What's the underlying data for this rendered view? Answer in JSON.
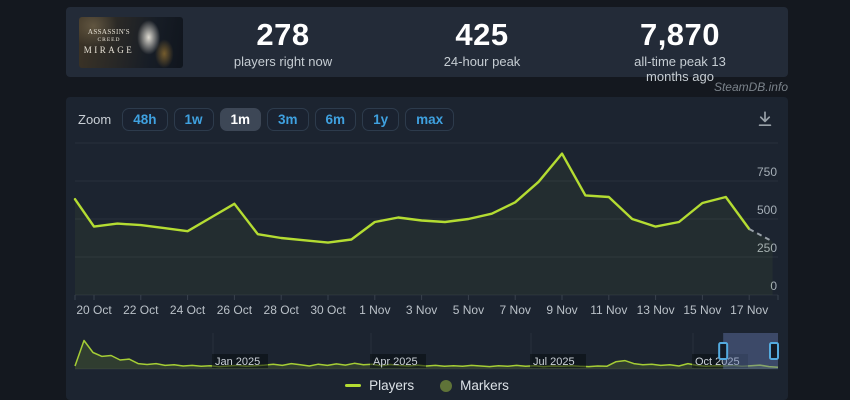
{
  "stats_bar": {
    "game_title": "Assassin's Creed Mirage",
    "capsule_lines": [
      "ASSASSIN'S",
      "CREED",
      "MIRAGE"
    ],
    "stats": [
      {
        "value": "278",
        "label": "players right now"
      },
      {
        "value": "425",
        "label": "24-hour peak"
      },
      {
        "value": "7,870",
        "label": "all-time peak 13 months ago"
      }
    ]
  },
  "credit": "SteamDB.info",
  "toolbar": {
    "zoom_label": "Zoom",
    "options": [
      {
        "label": "48h",
        "selected": false
      },
      {
        "label": "1w",
        "selected": false
      },
      {
        "label": "1m",
        "selected": true
      },
      {
        "label": "3m",
        "selected": false
      },
      {
        "label": "6m",
        "selected": false
      },
      {
        "label": "1y",
        "selected": false
      },
      {
        "label": "max",
        "selected": false
      }
    ],
    "download_icon": "download-icon"
  },
  "chart_data": [
    {
      "type": "line",
      "name": "players-last-month",
      "series_name": "Players",
      "line_color": "#b4dc32",
      "x": [
        "19 Oct",
        "20 Oct",
        "21 Oct",
        "22 Oct",
        "23 Oct",
        "24 Oct",
        "25 Oct",
        "26 Oct",
        "27 Oct",
        "28 Oct",
        "29 Oct",
        "30 Oct",
        "31 Oct",
        "1 Nov",
        "2 Nov",
        "3 Nov",
        "4 Nov",
        "5 Nov",
        "6 Nov",
        "7 Nov",
        "8 Nov",
        "9 Nov",
        "10 Nov",
        "11 Nov",
        "12 Nov",
        "13 Nov",
        "14 Nov",
        "15 Nov",
        "16 Nov",
        "17 Nov",
        "18 Nov"
      ],
      "values": [
        630,
        450,
        470,
        460,
        440,
        420,
        510,
        600,
        400,
        375,
        360,
        345,
        365,
        480,
        510,
        490,
        480,
        500,
        535,
        610,
        745,
        930,
        655,
        645,
        500,
        450,
        480,
        605,
        645,
        434,
        352
      ],
      "last_point_provisional_dashed": true,
      "ylim": [
        0,
        1000
      ],
      "ytick_labels": [
        "750",
        "500",
        "250",
        "0"
      ],
      "yticks": [
        750,
        500,
        250,
        0
      ],
      "x_tick_labels": [
        "20 Oct",
        "22 Oct",
        "24 Oct",
        "26 Oct",
        "28 Oct",
        "30 Oct",
        "1 Nov",
        "3 Nov",
        "5 Nov",
        "7 Nov",
        "9 Nov",
        "11 Nov",
        "13 Nov",
        "15 Nov",
        "17 Nov"
      ],
      "grid": true,
      "legend_position": "bottom"
    },
    {
      "type": "area",
      "name": "navigator-full-history",
      "color": "#a5cd35",
      "x_tick_labels": [
        "Jan 2025",
        "Apr 2025",
        "Jul 2025",
        "Oct 2025"
      ],
      "values_normalized": [
        0.1,
        0.95,
        0.55,
        0.42,
        0.45,
        0.3,
        0.33,
        0.18,
        0.15,
        0.18,
        0.12,
        0.14,
        0.1,
        0.12,
        0.09,
        0.11,
        0.08,
        0.1,
        0.12,
        0.09,
        0.11,
        0.13,
        0.16,
        0.12,
        0.18,
        0.14,
        0.1,
        0.16,
        0.12,
        0.17,
        0.13,
        0.19,
        0.14,
        0.16,
        0.11,
        0.15,
        0.12,
        0.1,
        0.13,
        0.1,
        0.12,
        0.09,
        0.11,
        0.09,
        0.12,
        0.1,
        0.08,
        0.11,
        0.09,
        0.12,
        0.09,
        0.11,
        0.08,
        0.1,
        0.09,
        0.11,
        0.09,
        0.08,
        0.1,
        0.09,
        0.24,
        0.28,
        0.18,
        0.14,
        0.16,
        0.12,
        0.14,
        0.1,
        0.18,
        0.12,
        0.09,
        0.11,
        0.1,
        0.12,
        0.09,
        0.11,
        0.13,
        0.08,
        0.06
      ],
      "selection_frac": [
        0.922,
        1.0
      ]
    }
  ],
  "legend": [
    {
      "label": "Players",
      "swatch": "line",
      "color": "#b4dc32"
    },
    {
      "label": "Markers",
      "swatch": "circle",
      "color": "#5f7338"
    }
  ],
  "colors": {
    "page_bg": "#14181f",
    "statsbar_bg": "#232b38",
    "panel_bg": "#1c2430",
    "gridline": "#29313d",
    "axis": "#39424e",
    "y_label": "#a5aeb6",
    "x_label": "#bac1c8",
    "accent_green": "#b4dc32",
    "accent_blue": "#3fa1e0",
    "dashed_segment": "#98a0a8",
    "nav_selection": "rgba(99,120,174,0.45)",
    "nav_handle": "#54abdf"
  }
}
